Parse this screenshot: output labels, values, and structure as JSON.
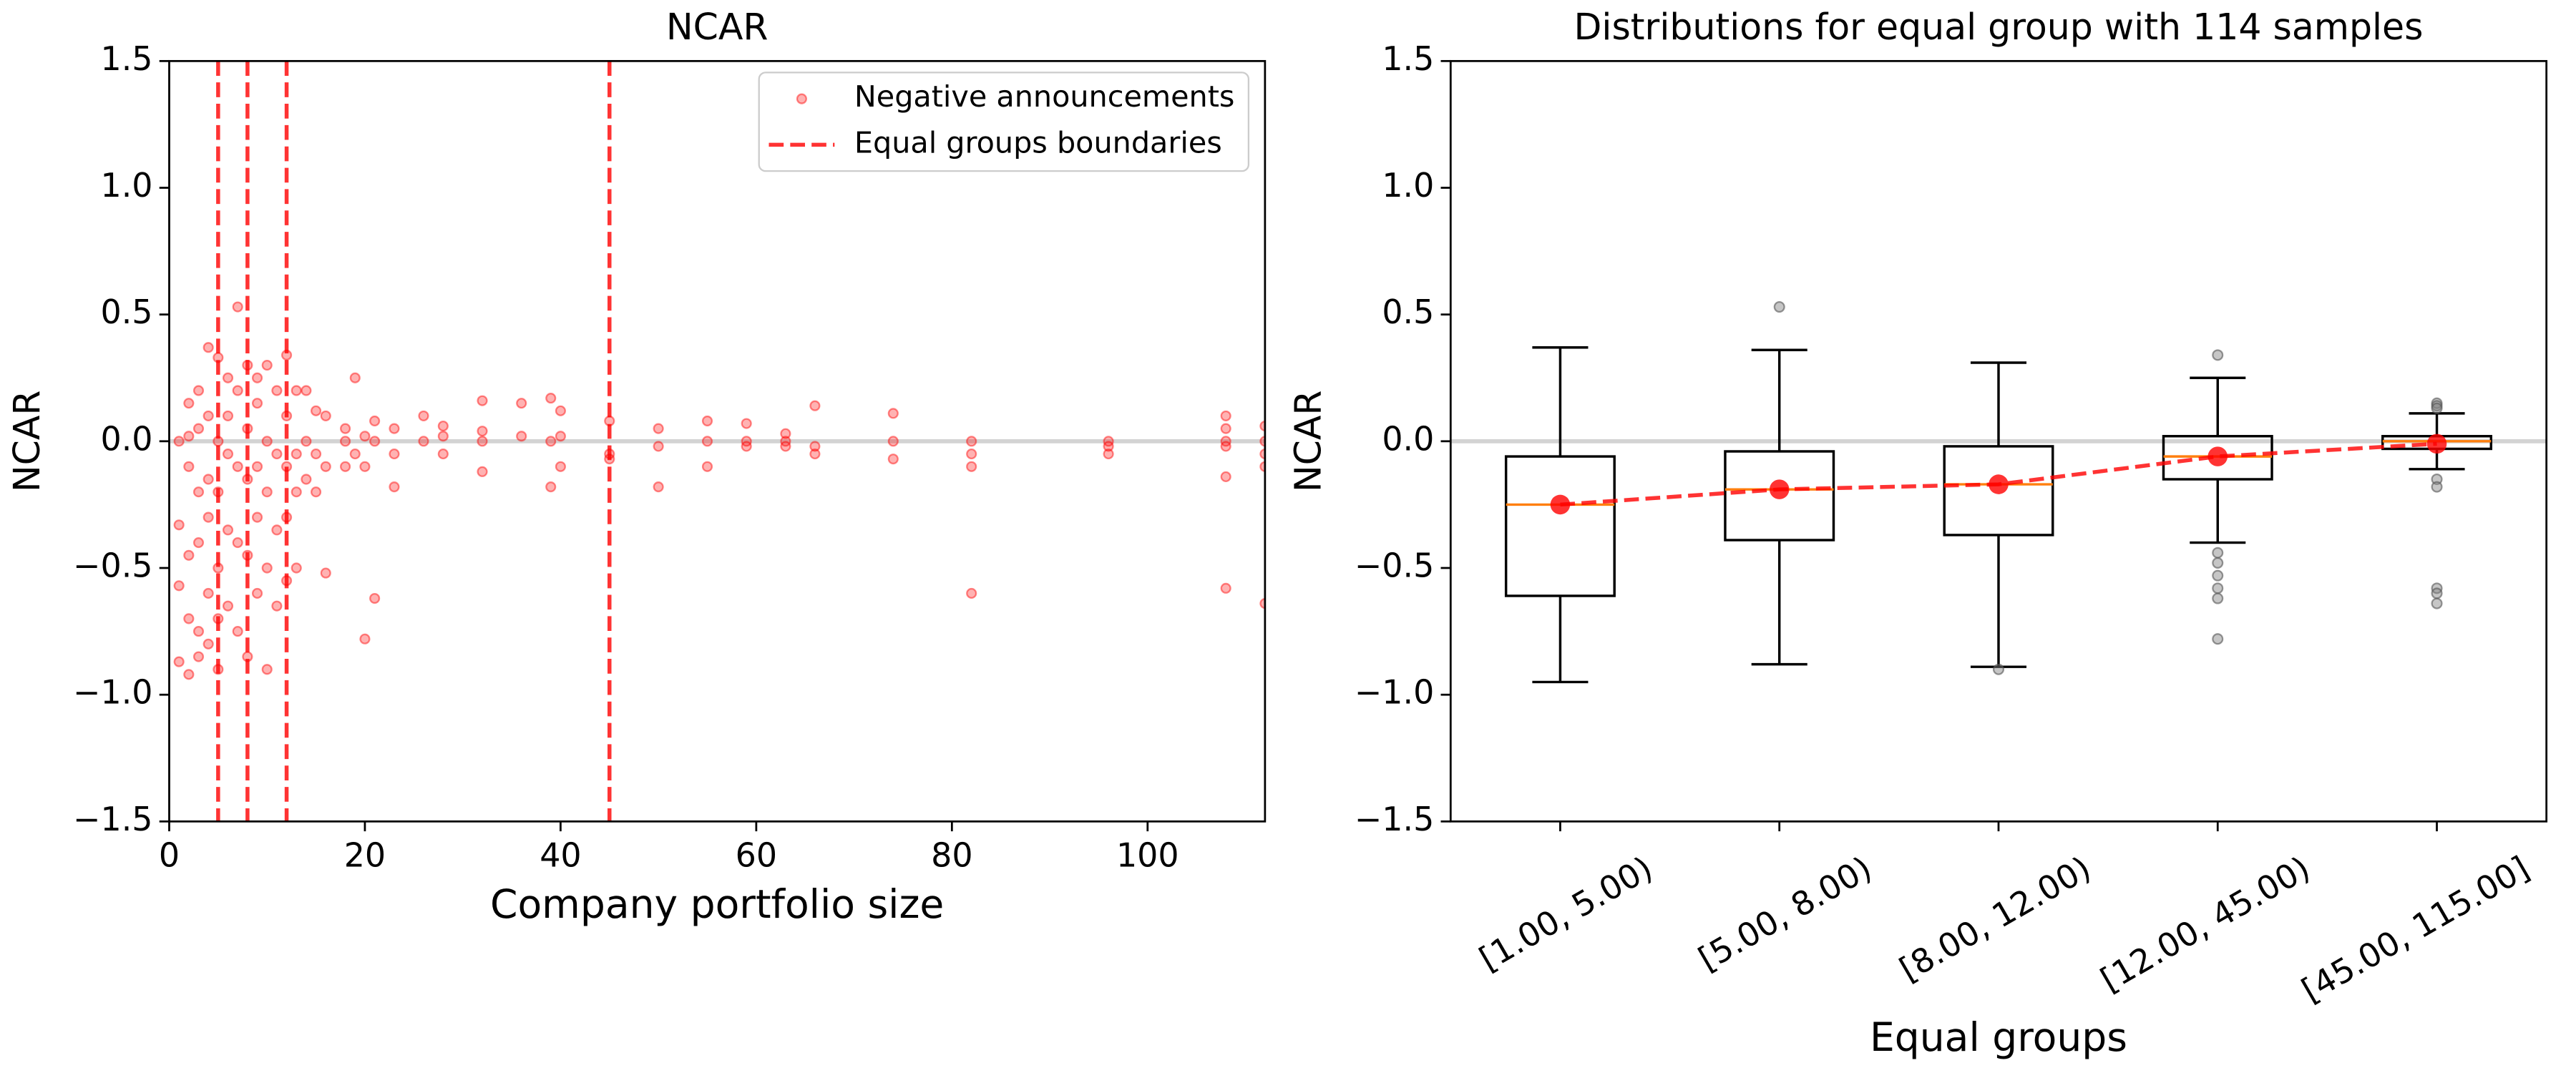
{
  "chart_data": [
    {
      "type": "scatter",
      "title": "NCAR",
      "xlabel": "Company portfolio size",
      "ylabel": "NCAR",
      "xlim": [
        0,
        112
      ],
      "ylim": [
        -1.5,
        1.5
      ],
      "xticks": [
        0,
        20,
        40,
        60,
        80,
        100
      ],
      "yticks": [
        {
          "value": -1.5,
          "label": "−1.5"
        },
        {
          "value": -1,
          "label": "−1.0"
        },
        {
          "value": -0.5,
          "label": "−0.5"
        },
        {
          "value": 0,
          "label": "0.0"
        },
        0.5,
        {
          "value": 1,
          "label": "1.0"
        },
        1.5
      ],
      "zero_line": true,
      "legend": "upper right",
      "series": [
        {
          "name": "Negative announcements",
          "color": "#ff0000",
          "x": [
            1,
            1,
            1,
            1,
            2,
            2,
            2,
            2,
            2,
            2,
            3,
            3,
            3,
            3,
            3,
            3,
            4,
            4,
            4,
            4,
            4,
            4,
            5,
            5,
            5,
            5,
            5,
            5,
            6,
            6,
            6,
            6,
            6,
            7,
            7,
            7,
            7,
            7,
            8,
            8,
            8,
            8,
            8,
            9,
            9,
            9,
            9,
            9,
            10,
            10,
            10,
            10,
            10,
            11,
            11,
            11,
            11,
            12,
            12,
            12,
            12,
            12,
            13,
            13,
            13,
            13,
            14,
            14,
            14,
            15,
            15,
            15,
            16,
            16,
            16,
            18,
            18,
            18,
            19,
            19,
            20,
            20,
            20,
            21,
            21,
            21,
            23,
            23,
            23,
            26,
            26,
            28,
            28,
            28,
            32,
            32,
            32,
            32,
            36,
            36,
            39,
            39,
            39,
            40,
            40,
            40,
            45,
            45,
            45,
            50,
            50,
            50,
            55,
            55,
            55,
            59,
            59,
            59,
            63,
            63,
            63,
            66,
            66,
            66,
            74,
            74,
            74,
            82,
            82,
            82,
            82,
            96,
            96,
            96,
            108,
            108,
            108,
            108,
            108,
            108,
            112,
            112,
            112,
            112,
            112
          ],
          "y": [
            0.0,
            -0.33,
            -0.57,
            -0.87,
            0.02,
            -0.1,
            -0.45,
            -0.7,
            -0.92,
            0.15,
            0.2,
            -0.2,
            -0.4,
            -0.75,
            -0.85,
            0.05,
            0.37,
            0.1,
            -0.15,
            -0.3,
            -0.6,
            -0.8,
            0.33,
            0.0,
            -0.2,
            -0.5,
            -0.7,
            -0.9,
            0.25,
            -0.05,
            -0.35,
            -0.65,
            0.1,
            0.53,
            0.2,
            -0.1,
            -0.4,
            -0.75,
            0.3,
            0.05,
            -0.15,
            -0.45,
            -0.85,
            0.15,
            -0.1,
            -0.3,
            -0.6,
            0.25,
            0.3,
            0.0,
            -0.2,
            -0.5,
            -0.9,
            0.2,
            -0.05,
            -0.35,
            -0.65,
            0.34,
            0.1,
            -0.1,
            -0.3,
            -0.55,
            0.2,
            -0.05,
            -0.2,
            -0.5,
            0.2,
            0.0,
            -0.15,
            0.12,
            -0.05,
            -0.2,
            0.1,
            -0.1,
            -0.52,
            0.0,
            0.05,
            -0.1,
            0.25,
            -0.05,
            0.02,
            -0.78,
            -0.1,
            -0.62,
            0.0,
            0.08,
            0.05,
            -0.05,
            -0.18,
            0.1,
            0.0,
            0.06,
            -0.05,
            0.02,
            0.16,
            0.0,
            -0.12,
            0.04,
            0.15,
            0.02,
            0.17,
            0.0,
            -0.18,
            0.12,
            0.02,
            -0.1,
            0.08,
            -0.05,
            -0.07,
            0.05,
            -0.02,
            -0.18,
            0.08,
            0.0,
            -0.1,
            0.07,
            0.0,
            -0.02,
            0.03,
            0.0,
            -0.02,
            0.14,
            -0.02,
            -0.05,
            0.11,
            0.0,
            -0.07,
            0.0,
            -0.05,
            -0.1,
            -0.6,
            0.0,
            -0.02,
            -0.05,
            0.1,
            0.05,
            0.0,
            -0.02,
            -0.14,
            -0.58,
            0.06,
            0.0,
            -0.05,
            -0.1,
            -0.64
          ]
        },
        {
          "name": "Equal groups boundaries",
          "color": "#ff0000",
          "vlines": [
            5,
            8,
            12,
            45
          ]
        }
      ]
    },
    {
      "type": "box",
      "title": "Distributions for equal group with 114 samples",
      "xlabel": "Equal groups",
      "ylabel": "NCAR",
      "ylim": [
        -1.5,
        1.5
      ],
      "yticks": [
        {
          "value": -1.5,
          "label": "−1.5"
        },
        {
          "value": -1,
          "label": "−1.0"
        },
        {
          "value": -0.5,
          "label": "−0.5"
        },
        {
          "value": 0,
          "label": "0.0"
        },
        0.5,
        {
          "value": 1,
          "label": "1.0"
        },
        1.5
      ],
      "zero_line": true,
      "categories": [
        "[1.00, 5.00)",
        "[5.00, 8.00)",
        "[8.00, 12.00)",
        "[12.00, 45.00)",
        "[45.00, 115.00]"
      ],
      "median_color": "#ff7f0e",
      "mean_color": "#ff0000",
      "boxes": [
        {
          "low": -0.95,
          "q1": -0.61,
          "median": -0.25,
          "q3": -0.06,
          "high": 0.37,
          "mean": -0.25,
          "outliers": []
        },
        {
          "low": -0.88,
          "q1": -0.39,
          "median": -0.19,
          "q3": -0.04,
          "high": 0.36,
          "mean": -0.19,
          "outliers": [
            0.53
          ]
        },
        {
          "low": -0.89,
          "q1": -0.37,
          "median": -0.17,
          "q3": -0.02,
          "high": 0.31,
          "mean": -0.17,
          "outliers": [
            -0.9
          ]
        },
        {
          "low": -0.4,
          "q1": -0.15,
          "median": -0.06,
          "q3": 0.02,
          "high": 0.25,
          "mean": -0.06,
          "outliers": [
            0.34,
            -0.44,
            -0.48,
            -0.53,
            -0.58,
            -0.62,
            -0.78
          ]
        },
        {
          "low": -0.11,
          "q1": -0.03,
          "median": 0.0,
          "q3": 0.02,
          "high": 0.11,
          "mean": -0.01,
          "outliers": [
            0.15,
            0.14,
            0.13,
            -0.15,
            -0.18,
            -0.58,
            -0.6,
            -0.64
          ]
        }
      ]
    }
  ]
}
